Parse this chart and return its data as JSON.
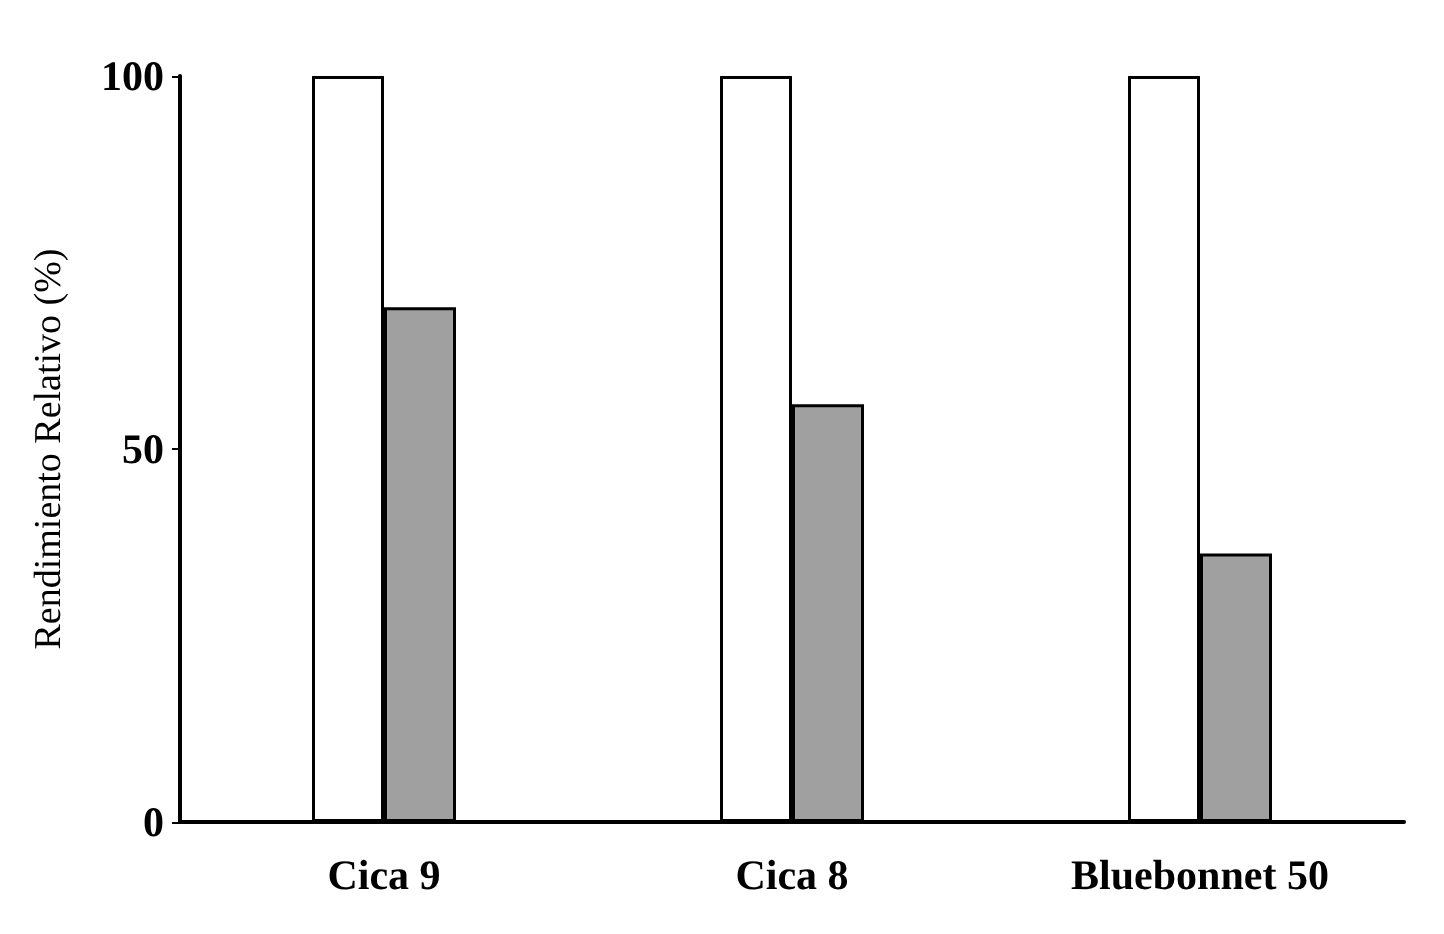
{
  "chart_data": {
    "type": "bar",
    "ylabel": "Rendimiento Relativo (%)",
    "categories": [
      "Cica 9",
      "Cica 8",
      "Bluebonnet 50"
    ],
    "series": [
      {
        "color": "#ffffff",
        "values": [
          100,
          100,
          100
        ]
      },
      {
        "color": "#a0a0a0",
        "values": [
          69,
          56,
          36
        ]
      }
    ],
    "ylim": [
      0,
      100
    ],
    "yticks": [
      0,
      50,
      100
    ],
    "grid": false
  }
}
